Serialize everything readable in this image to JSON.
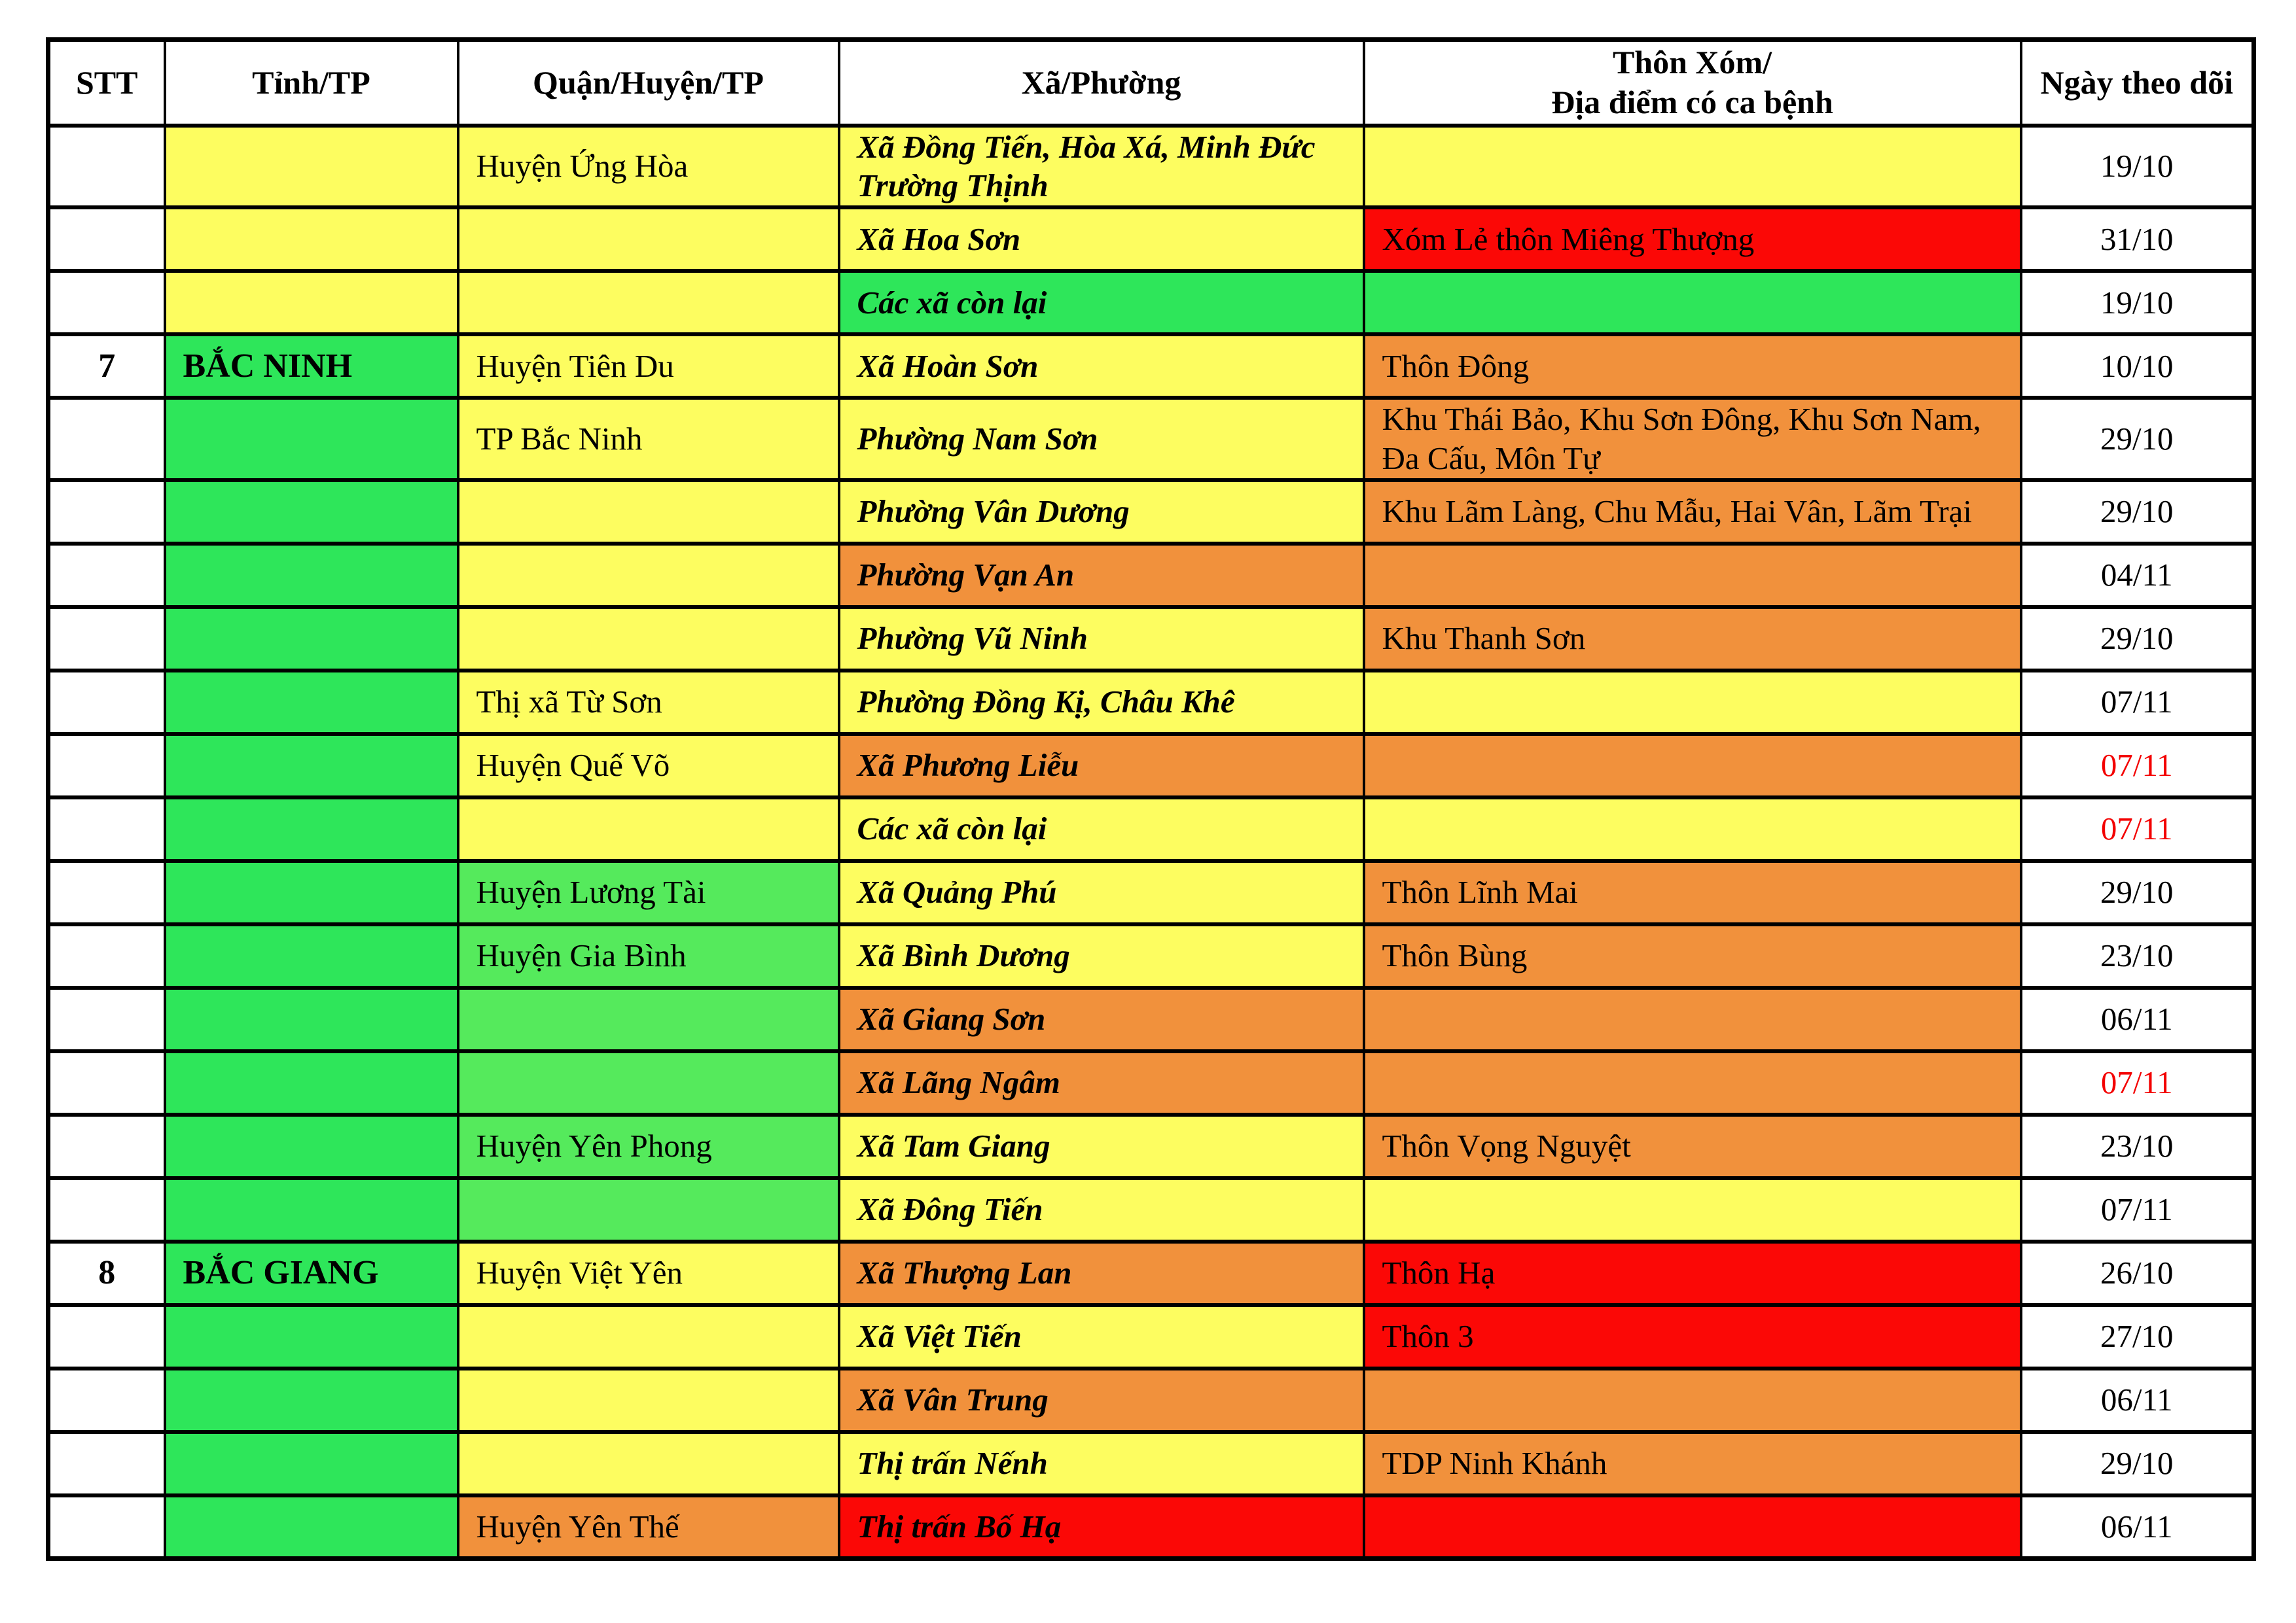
{
  "colors": {
    "yellow": "#FDFD60",
    "green": "#2EE65A",
    "light_green": "#55EA5C",
    "orange": "#F1913C",
    "red": "#FB0806",
    "white": "#FFFFFF",
    "date_alert_text": "#F30000",
    "border": "#000000",
    "text": "#000000"
  },
  "header": {
    "stt": "STT",
    "tinh": "Tỉnh/TP",
    "quan": "Quận/Huyện/TP",
    "xa": "Xã/Phường",
    "thon_line1": "Thôn Xóm/",
    "thon_line2": "Địa điểm có ca bệnh",
    "ngay": "Ngày theo dõi"
  },
  "rows": [
    {
      "stt": "",
      "tinh": "",
      "quan": "Huyện Ứng Hòa",
      "xa": "Xã Đồng Tiến, Hòa Xá, Minh Đức Trường Thịnh",
      "thon": "",
      "ngay": "19/10",
      "colors": [
        "yellow",
        "yellow",
        "yellow",
        "yellow"
      ],
      "date_red": false
    },
    {
      "stt": "",
      "tinh": "",
      "quan": "",
      "xa": "Xã Hoa Sơn",
      "thon": "Xóm Lẻ thôn Miêng Thượng",
      "ngay": "31/10",
      "colors": [
        "yellow",
        "yellow",
        "yellow",
        "red"
      ],
      "date_red": false
    },
    {
      "stt": "",
      "tinh": "",
      "quan": "",
      "xa": "Các xã còn lại",
      "thon": "",
      "ngay": "19/10",
      "colors": [
        "yellow",
        "yellow",
        "green",
        "green"
      ],
      "date_red": false
    },
    {
      "stt": "7",
      "tinh": "BẮC NINH",
      "quan": "Huyện Tiên Du",
      "xa": "Xã Hoàn Sơn",
      "thon": "Thôn Đông",
      "ngay": "10/10",
      "colors": [
        "green",
        "yellow",
        "yellow",
        "orange"
      ],
      "date_red": false
    },
    {
      "stt": "",
      "tinh": "",
      "quan": "TP Bắc Ninh",
      "xa": "Phường Nam Sơn",
      "thon": "Khu Thái Bảo, Khu Sơn Đông, Khu Sơn Nam, Đa Cấu, Môn Tự",
      "ngay": "29/10",
      "colors": [
        "green",
        "yellow",
        "yellow",
        "orange"
      ],
      "date_red": false
    },
    {
      "stt": "",
      "tinh": "",
      "quan": "",
      "xa": "Phường Vân Dương",
      "thon": "Khu Lãm Làng, Chu Mẫu, Hai Vân, Lãm Trại",
      "ngay": "29/10",
      "colors": [
        "green",
        "yellow",
        "yellow",
        "orange"
      ],
      "date_red": false
    },
    {
      "stt": "",
      "tinh": "",
      "quan": "",
      "xa": "Phường Vạn An",
      "thon": "",
      "ngay": "04/11",
      "colors": [
        "green",
        "yellow",
        "orange",
        "orange"
      ],
      "date_red": false
    },
    {
      "stt": "",
      "tinh": "",
      "quan": "",
      "xa": "Phường Vũ Ninh",
      "thon": "Khu Thanh Sơn",
      "ngay": "29/10",
      "colors": [
        "green",
        "yellow",
        "yellow",
        "orange"
      ],
      "date_red": false
    },
    {
      "stt": "",
      "tinh": "",
      "quan": "Thị xã Từ Sơn",
      "xa": "Phường Đồng Kị, Châu Khê",
      "thon": "",
      "ngay": "07/11",
      "colors": [
        "green",
        "yellow",
        "yellow",
        "yellow"
      ],
      "date_red": false
    },
    {
      "stt": "",
      "tinh": "",
      "quan": "Huyện Quế Võ",
      "xa": "Xã Phương Liễu",
      "thon": "",
      "ngay": "07/11",
      "colors": [
        "green",
        "yellow",
        "orange",
        "orange"
      ],
      "date_red": true
    },
    {
      "stt": "",
      "tinh": "",
      "quan": "",
      "xa": "Các xã còn lại",
      "thon": "",
      "ngay": "07/11",
      "colors": [
        "green",
        "yellow",
        "yellow",
        "yellow"
      ],
      "date_red": true
    },
    {
      "stt": "",
      "tinh": "",
      "quan": "Huyện Lương Tài",
      "xa": "Xã Quảng Phú",
      "thon": "Thôn Lĩnh Mai",
      "ngay": "29/10",
      "colors": [
        "green",
        "light_green",
        "yellow",
        "orange"
      ],
      "date_red": false
    },
    {
      "stt": "",
      "tinh": "",
      "quan": "Huyện Gia Bình",
      "xa": "Xã Bình Dương",
      "thon": "Thôn Bùng",
      "ngay": "23/10",
      "colors": [
        "green",
        "light_green",
        "yellow",
        "orange"
      ],
      "date_red": false
    },
    {
      "stt": "",
      "tinh": "",
      "quan": "",
      "xa": "Xã Giang Sơn",
      "thon": "",
      "ngay": "06/11",
      "colors": [
        "green",
        "light_green",
        "orange",
        "orange"
      ],
      "date_red": false
    },
    {
      "stt": "",
      "tinh": "",
      "quan": "",
      "xa": "Xã Lãng Ngâm",
      "thon": "",
      "ngay": "07/11",
      "colors": [
        "green",
        "light_green",
        "orange",
        "orange"
      ],
      "date_red": true
    },
    {
      "stt": "",
      "tinh": "",
      "quan": "Huyện Yên Phong",
      "xa": "Xã Tam Giang",
      "thon": "Thôn Vọng Nguyệt",
      "ngay": "23/10",
      "colors": [
        "green",
        "light_green",
        "yellow",
        "orange"
      ],
      "date_red": false
    },
    {
      "stt": "",
      "tinh": "",
      "quan": "",
      "xa": "Xã Đông Tiến",
      "thon": "",
      "ngay": "07/11",
      "colors": [
        "green",
        "light_green",
        "yellow",
        "yellow"
      ],
      "date_red": false
    },
    {
      "stt": "8",
      "tinh": "BẮC GIANG",
      "quan": "Huyện Việt Yên",
      "xa": "Xã Thượng Lan",
      "thon": "Thôn Hạ",
      "ngay": "26/10",
      "colors": [
        "green",
        "yellow",
        "orange",
        "red"
      ],
      "date_red": false
    },
    {
      "stt": "",
      "tinh": "",
      "quan": "",
      "xa": "Xã Việt Tiến",
      "thon": "Thôn 3",
      "ngay": "27/10",
      "colors": [
        "green",
        "yellow",
        "yellow",
        "red"
      ],
      "date_red": false
    },
    {
      "stt": "",
      "tinh": "",
      "quan": "",
      "xa": "Xã Vân Trung",
      "thon": "",
      "ngay": "06/11",
      "colors": [
        "green",
        "yellow",
        "orange",
        "orange"
      ],
      "date_red": false
    },
    {
      "stt": "",
      "tinh": "",
      "quan": "",
      "xa": "Thị trấn Nếnh",
      "thon": "TDP Ninh Khánh",
      "ngay": "29/10",
      "colors": [
        "green",
        "yellow",
        "yellow",
        "orange"
      ],
      "date_red": false
    },
    {
      "stt": "",
      "tinh": "",
      "quan": "Huyện Yên Thế",
      "xa": "Thị trấn Bố Hạ",
      "thon": "",
      "ngay": "06/11",
      "colors": [
        "green",
        "orange",
        "red",
        "red"
      ],
      "date_red": false
    }
  ]
}
